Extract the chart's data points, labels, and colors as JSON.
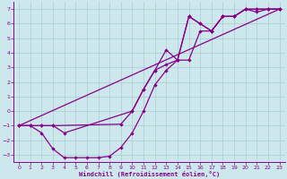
{
  "xlabel": "Windchill (Refroidissement éolien,°C)",
  "bg_color": "#cce8ec",
  "grid_color": "#aacccc",
  "line_color": "#880088",
  "xlim": [
    -0.5,
    23.5
  ],
  "ylim": [
    -3.5,
    7.5
  ],
  "xticks": [
    0,
    1,
    2,
    3,
    4,
    5,
    6,
    7,
    8,
    9,
    10,
    11,
    12,
    13,
    14,
    15,
    16,
    17,
    18,
    19,
    20,
    21,
    22,
    23
  ],
  "yticks": [
    -3,
    -2,
    -1,
    0,
    1,
    2,
    3,
    4,
    5,
    6,
    7
  ],
  "line1_x": [
    0,
    1,
    2,
    3,
    9,
    10,
    11,
    12,
    13,
    14,
    15,
    16,
    17,
    18,
    19,
    20,
    21,
    22,
    23
  ],
  "line1_y": [
    -1,
    -1,
    -1,
    -1,
    -0.9,
    0.0,
    1.5,
    2.8,
    4.2,
    3.5,
    6.5,
    6.0,
    5.5,
    6.5,
    6.5,
    7.0,
    7.0,
    7.0,
    7.0
  ],
  "line2_x": [
    0,
    1,
    2,
    3,
    4,
    5,
    6,
    7,
    8,
    9,
    10,
    11,
    12,
    13,
    14,
    15,
    16,
    17,
    18,
    19,
    20,
    21,
    22,
    23
  ],
  "line2_y": [
    -1,
    -1,
    -1.5,
    -2.6,
    -3.2,
    -3.2,
    -3.2,
    -3.2,
    -3.1,
    -2.5,
    -1.5,
    0.0,
    1.8,
    2.8,
    3.5,
    3.5,
    5.5,
    5.5,
    6.5,
    6.5,
    7.0,
    6.8,
    7.0,
    7.0
  ],
  "line3_x": [
    0,
    1,
    2,
    3,
    4,
    10,
    11,
    12,
    13,
    14,
    15,
    16,
    17,
    18,
    19,
    20,
    21,
    22,
    23
  ],
  "line3_y": [
    -1,
    -1,
    -1,
    -1,
    -1.5,
    0.0,
    1.5,
    2.8,
    3.2,
    3.5,
    6.5,
    6.0,
    5.5,
    6.5,
    6.5,
    7.0,
    7.0,
    7.0,
    7.0
  ]
}
